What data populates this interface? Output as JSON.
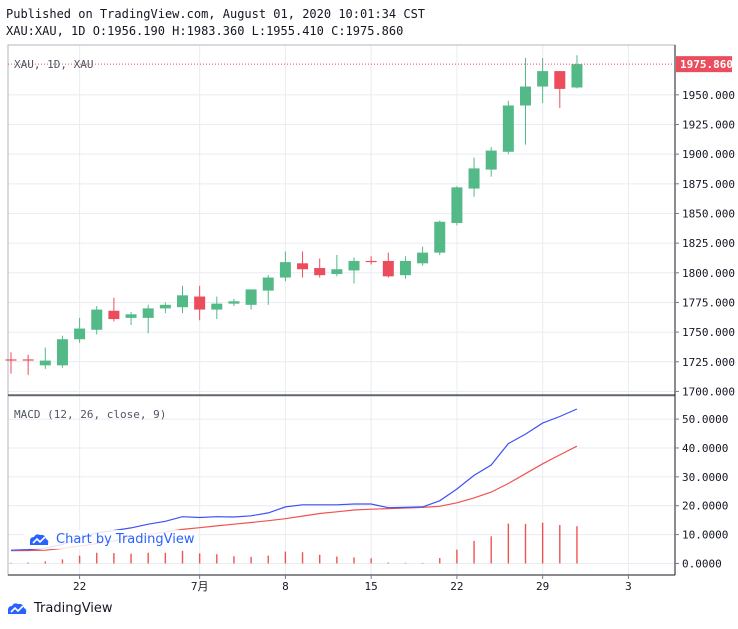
{
  "header": {
    "published": "Published on TradingView.com, August 01, 2020 10:01:34 CST",
    "ohlc": "XAU:XAU, 1D O:1956.190 H:1983.360 L:1955.410 C:1975.860"
  },
  "colors": {
    "up": "#53b987",
    "down": "#eb4d5c",
    "macd": "#3f51f5",
    "signal": "#ef5350"
  },
  "chart_data": [
    {
      "type": "candlestick",
      "pane_label": "XAU, 1D, XAU",
      "last_price_label": "1975.860",
      "last_price": 1975.86,
      "ylim": [
        1697,
        1992
      ],
      "yticks": [
        1700,
        1725,
        1750,
        1775,
        1800,
        1825,
        1850,
        1875,
        1900,
        1925,
        1950
      ],
      "ytick_labels": [
        "1700.000",
        "1725.000",
        "1750.000",
        "1775.000",
        "1800.000",
        "1825.000",
        "1850.000",
        "1875.000",
        "1900.000",
        "1925.000",
        "1950.000"
      ],
      "candles": [
        {
          "o": 1727,
          "h": 1733,
          "l": 1715,
          "c": 1726
        },
        {
          "o": 1727,
          "h": 1731,
          "l": 1714,
          "c": 1726
        },
        {
          "o": 1722,
          "h": 1737,
          "l": 1719,
          "c": 1726
        },
        {
          "o": 1722,
          "h": 1747,
          "l": 1720,
          "c": 1744
        },
        {
          "o": 1744,
          "h": 1762,
          "l": 1741,
          "c": 1753
        },
        {
          "o": 1752,
          "h": 1772,
          "l": 1748,
          "c": 1769
        },
        {
          "o": 1768,
          "h": 1779,
          "l": 1759,
          "c": 1761
        },
        {
          "o": 1762,
          "h": 1767,
          "l": 1756,
          "c": 1765
        },
        {
          "o": 1762,
          "h": 1773,
          "l": 1749,
          "c": 1770
        },
        {
          "o": 1770,
          "h": 1775,
          "l": 1766,
          "c": 1773
        },
        {
          "o": 1771,
          "h": 1789,
          "l": 1766,
          "c": 1781
        },
        {
          "o": 1780,
          "h": 1789,
          "l": 1760,
          "c": 1769
        },
        {
          "o": 1769,
          "h": 1780,
          "l": 1761,
          "c": 1774
        },
        {
          "o": 1774,
          "h": 1778,
          "l": 1772,
          "c": 1776
        },
        {
          "o": 1773,
          "h": 1786,
          "l": 1769,
          "c": 1786
        },
        {
          "o": 1785,
          "h": 1798,
          "l": 1773,
          "c": 1796
        },
        {
          "o": 1796,
          "h": 1818,
          "l": 1793,
          "c": 1809
        },
        {
          "o": 1808,
          "h": 1818,
          "l": 1796,
          "c": 1803
        },
        {
          "o": 1804,
          "h": 1812,
          "l": 1796,
          "c": 1798
        },
        {
          "o": 1799,
          "h": 1815,
          "l": 1797,
          "c": 1803
        },
        {
          "o": 1802,
          "h": 1813,
          "l": 1791,
          "c": 1810
        },
        {
          "o": 1810,
          "h": 1814,
          "l": 1807,
          "c": 1809
        },
        {
          "o": 1810,
          "h": 1817,
          "l": 1796,
          "c": 1797
        },
        {
          "o": 1798,
          "h": 1814,
          "l": 1795,
          "c": 1810
        },
        {
          "o": 1808,
          "h": 1822,
          "l": 1806,
          "c": 1817
        },
        {
          "o": 1817,
          "h": 1844,
          "l": 1815,
          "c": 1843
        },
        {
          "o": 1842,
          "h": 1873,
          "l": 1840,
          "c": 1872
        },
        {
          "o": 1871,
          "h": 1897,
          "l": 1864,
          "c": 1888
        },
        {
          "o": 1887,
          "h": 1906,
          "l": 1881,
          "c": 1903
        },
        {
          "o": 1902,
          "h": 1945,
          "l": 1900,
          "c": 1941
        },
        {
          "o": 1941,
          "h": 1981,
          "l": 1908,
          "c": 1957
        },
        {
          "o": 1957,
          "h": 1981,
          "l": 1943,
          "c": 1970
        },
        {
          "o": 1970,
          "h": 1970,
          "l": 1939,
          "c": 1955
        },
        {
          "o": 1956.19,
          "h": 1983.36,
          "l": 1955.41,
          "c": 1975.86
        }
      ],
      "xtick_labels": [
        {
          "label": "22",
          "index": 4
        },
        {
          "label": "7月",
          "index": 11
        },
        {
          "label": "8",
          "index": 16
        },
        {
          "label": "15",
          "index": 21
        },
        {
          "label": "22",
          "index": 26
        },
        {
          "label": "29",
          "index": 31
        },
        {
          "label": "3",
          "index": 36
        }
      ]
    },
    {
      "type": "line+histogram",
      "pane_label": "MACD (12, 26, close, 9)",
      "ylim": [
        -4,
        58
      ],
      "yticks": [
        0,
        10,
        20,
        30,
        40,
        50
      ],
      "ytick_labels": [
        "0.0000",
        "10.0000",
        "20.0000",
        "30.0000",
        "40.0000",
        "50.0000"
      ],
      "series": [
        {
          "name": "macd",
          "values": [
            4.6,
            4.8,
            5.3,
            6.6,
            8.7,
            10.6,
            11.4,
            12.3,
            13.6,
            14.6,
            16.2,
            15.9,
            16.2,
            16.1,
            16.5,
            17.5,
            19.6,
            20.3,
            20.3,
            20.3,
            20.6,
            20.6,
            19.3,
            19.4,
            19.6,
            21.7,
            25.8,
            30.5,
            34.1,
            41.5,
            44.8,
            48.6,
            50.9,
            53.5
          ]
        },
        {
          "name": "signal",
          "values": [
            4.4,
            4.5,
            4.6,
            5.2,
            6.0,
            6.9,
            7.8,
            8.9,
            9.9,
            10.9,
            11.8,
            12.4,
            13.0,
            13.6,
            14.2,
            14.8,
            15.5,
            16.4,
            17.3,
            17.9,
            18.5,
            18.8,
            19.0,
            19.2,
            19.4,
            19.8,
            21.0,
            22.7,
            24.7,
            27.7,
            31.1,
            34.5,
            37.6,
            40.6
          ]
        },
        {
          "name": "histogram",
          "values": [
            0.2,
            0.3,
            0.7,
            1.4,
            2.7,
            3.7,
            3.6,
            3.4,
            3.7,
            3.7,
            4.4,
            3.5,
            3.2,
            2.5,
            2.3,
            2.7,
            4.1,
            3.9,
            3.0,
            2.4,
            2.1,
            1.8,
            0.3,
            0.2,
            0.2,
            1.9,
            4.8,
            7.8,
            9.4,
            13.8,
            13.7,
            14.1,
            13.3,
            12.9
          ]
        }
      ]
    }
  ],
  "watermark": {
    "text": "Chart by TradingView",
    "icon": "tradingview-logo-icon"
  },
  "footer": {
    "brand": "TradingView",
    "icon": "tradingview-logo-icon"
  }
}
